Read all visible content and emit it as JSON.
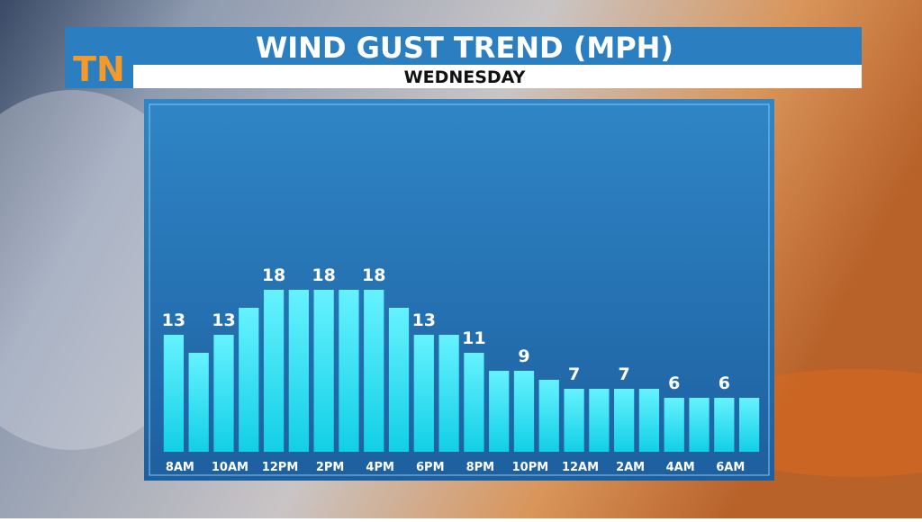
{
  "logo": "TN",
  "chart_data": {
    "type": "bar",
    "title": "WIND GUST TREND (MPH)",
    "subtitle": "WEDNESDAY",
    "categories": [
      "8AM",
      null,
      "10AM",
      null,
      "12PM",
      null,
      "2PM",
      null,
      "4PM",
      null,
      "6PM",
      null,
      "8PM",
      null,
      "10PM",
      null,
      "12AM",
      null,
      "2AM",
      null,
      "4AM",
      null,
      "6AM",
      null
    ],
    "values": [
      13,
      11,
      13,
      16,
      18,
      18,
      18,
      18,
      18,
      16,
      13,
      13,
      11,
      9,
      9,
      8,
      7,
      7,
      7,
      7,
      6,
      6,
      6,
      6
    ],
    "color": "#3ee6f8"
  }
}
